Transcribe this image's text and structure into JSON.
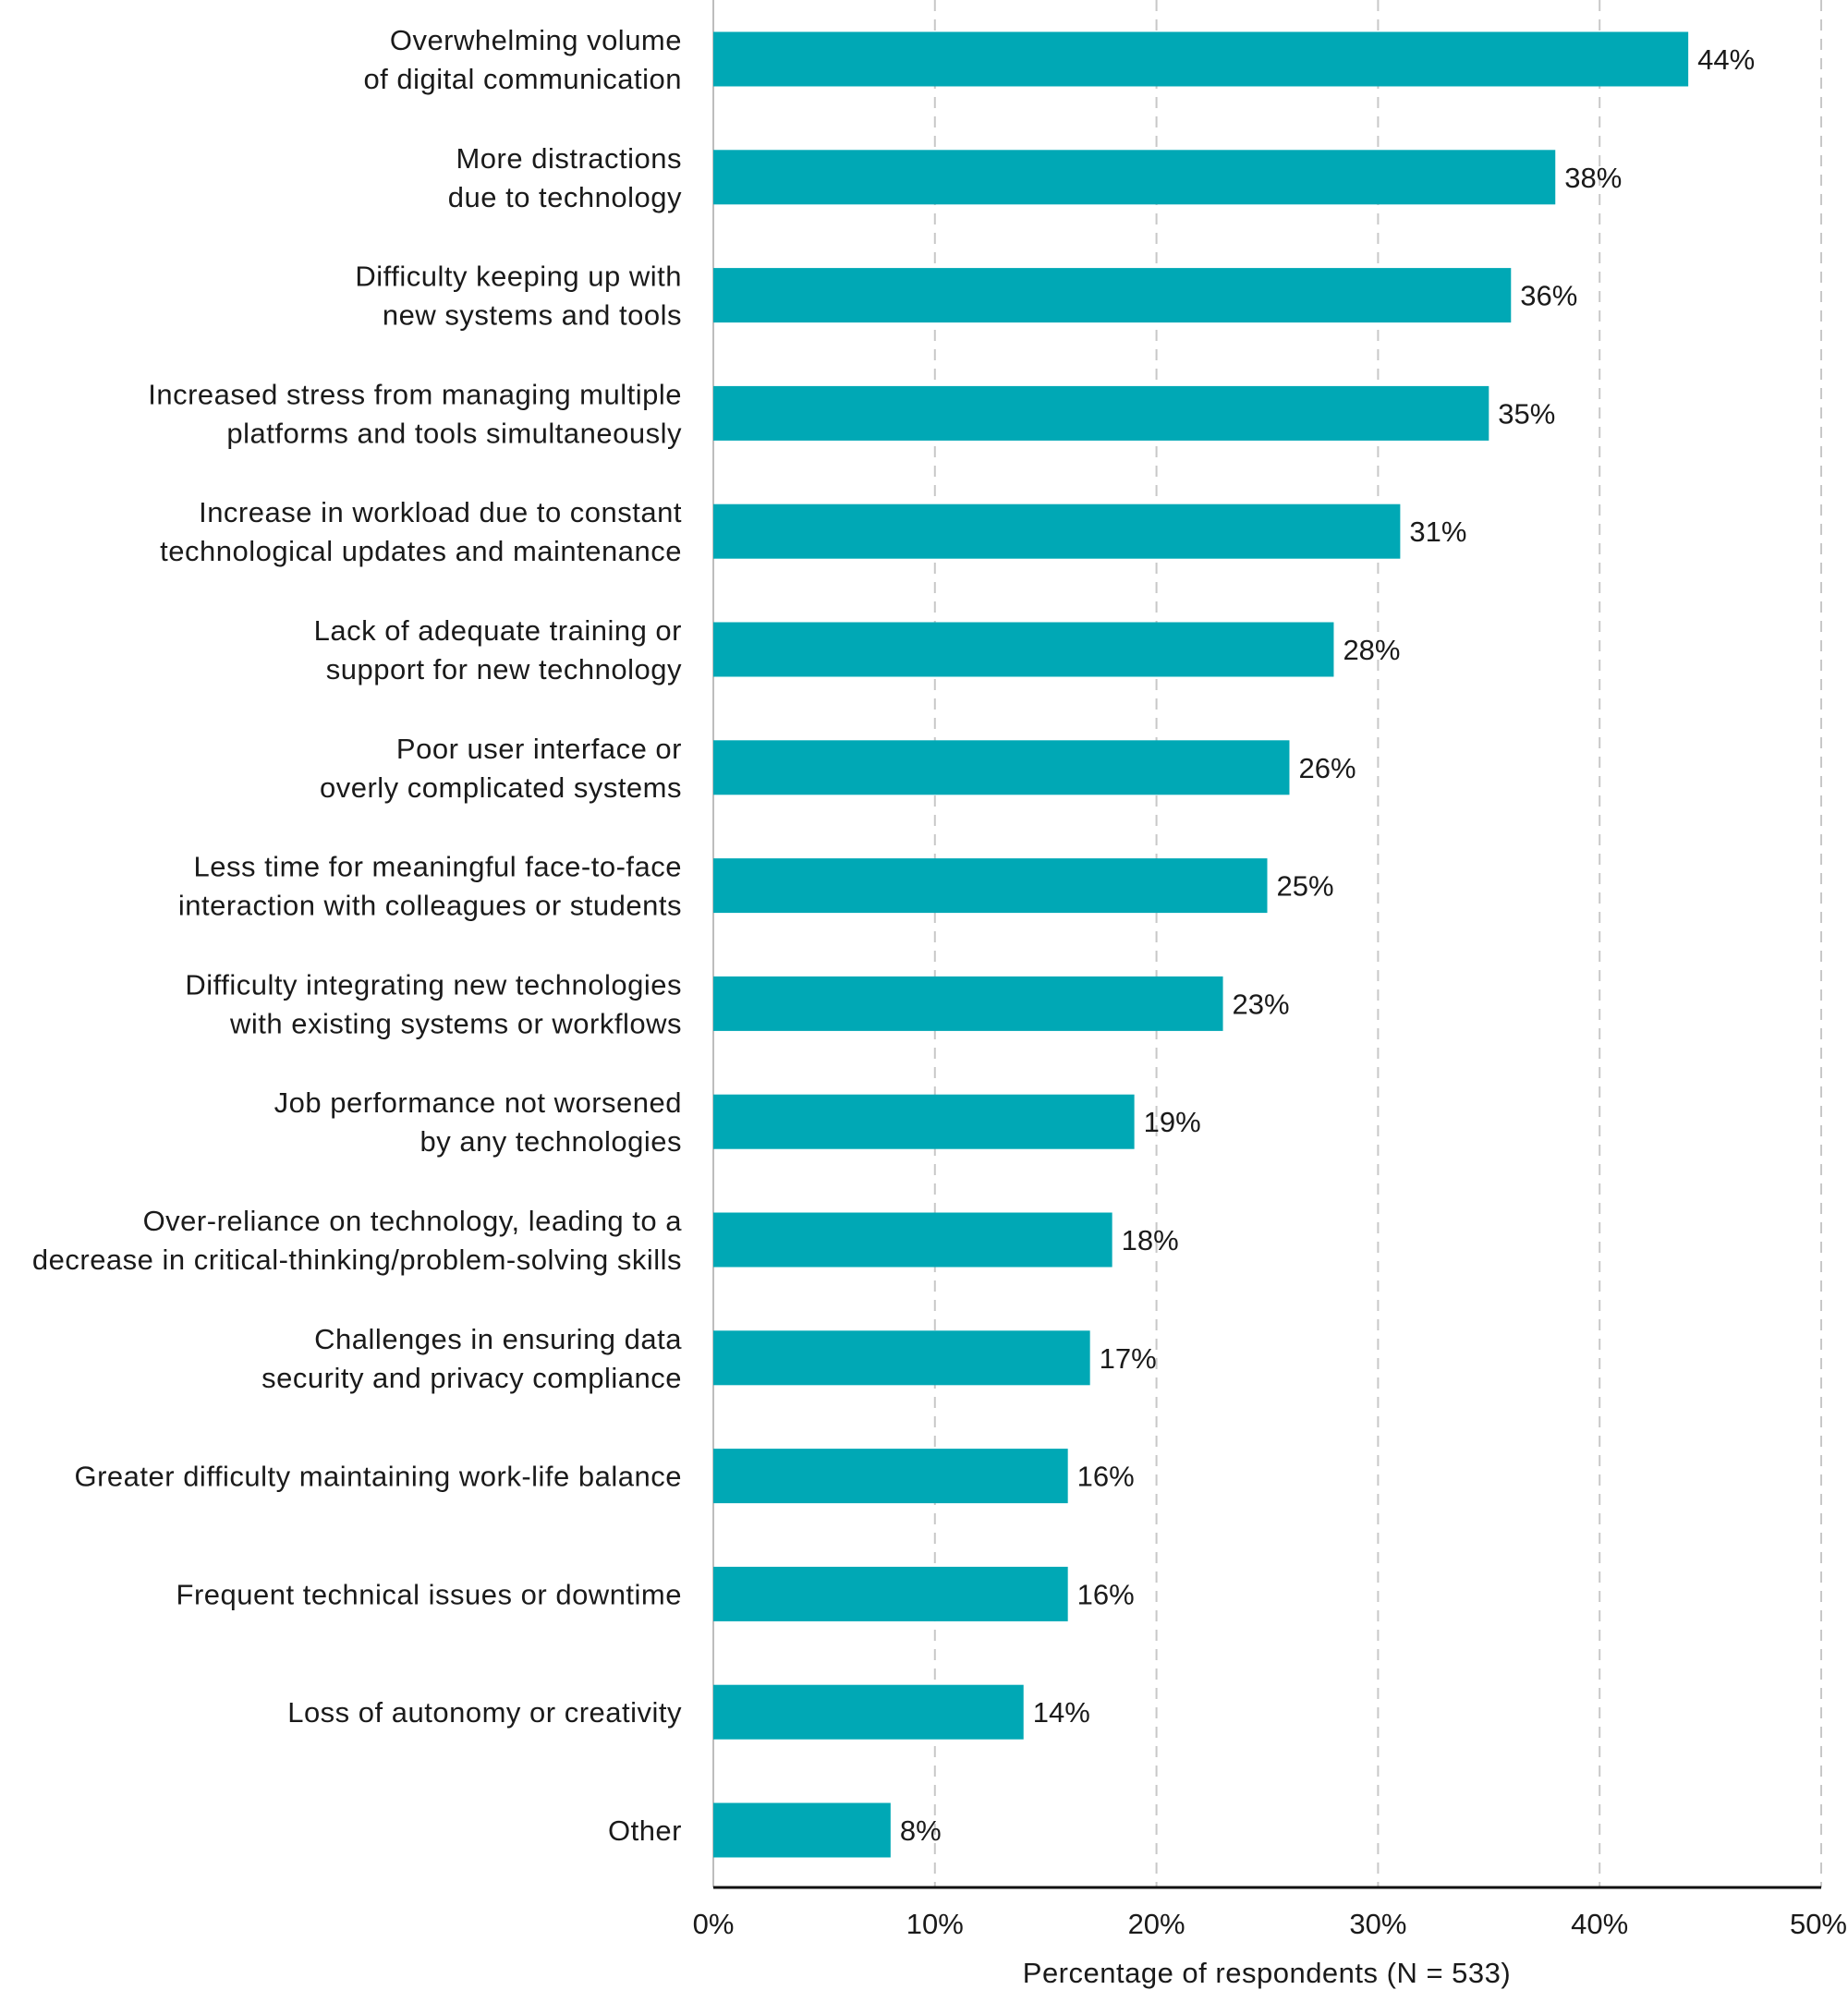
{
  "chart_data": {
    "type": "bar",
    "orientation": "horizontal",
    "categories": [
      [
        "Overwhelming volume",
        "of digital communication"
      ],
      [
        "More distractions",
        "due to technology"
      ],
      [
        "Difficulty keeping up with",
        "new systems and tools"
      ],
      [
        "Increased stress from managing multiple",
        "platforms and tools simultaneously"
      ],
      [
        "Increase in workload due to constant",
        "technological updates and maintenance"
      ],
      [
        "Lack of adequate training or",
        "support for new technology"
      ],
      [
        "Poor user interface or",
        "overly complicated systems"
      ],
      [
        "Less time for meaningful face-to-face",
        "interaction with colleagues or students"
      ],
      [
        "Difficulty integrating new technologies",
        "with existing systems or workflows"
      ],
      [
        "Job performance not worsened",
        "by any technologies"
      ],
      [
        "Over-reliance on technology, leading to a",
        "decrease in critical-thinking/problem-solving skills"
      ],
      [
        "Challenges in ensuring data",
        "security and privacy compliance"
      ],
      [
        "Greater difficulty maintaining work-life balance"
      ],
      [
        "Frequent technical issues or downtime"
      ],
      [
        "Loss of autonomy or creativity"
      ],
      [
        "Other"
      ]
    ],
    "values": [
      44,
      38,
      36,
      35,
      31,
      28,
      26,
      25,
      23,
      19,
      18,
      17,
      16,
      16,
      14,
      8
    ],
    "value_labels": [
      "44%",
      "38%",
      "36%",
      "35%",
      "31%",
      "28%",
      "26%",
      "25%",
      "23%",
      "19%",
      "18%",
      "17%",
      "16%",
      "16%",
      "14%",
      "8%"
    ],
    "xlim": [
      0,
      50
    ],
    "x_ticks": [
      0,
      10,
      20,
      30,
      40,
      50
    ],
    "x_tick_labels": [
      "0%",
      "10%",
      "20%",
      "30%",
      "40%",
      "50%"
    ],
    "xlabel": "Percentage of respondents (N = 533)",
    "ylabel": "",
    "title": "",
    "grid": "vertical dashed",
    "legend": "none",
    "bar_color": "#00A8B5",
    "grid_color": "#c8c8c8",
    "axis_color": "#111111"
  }
}
